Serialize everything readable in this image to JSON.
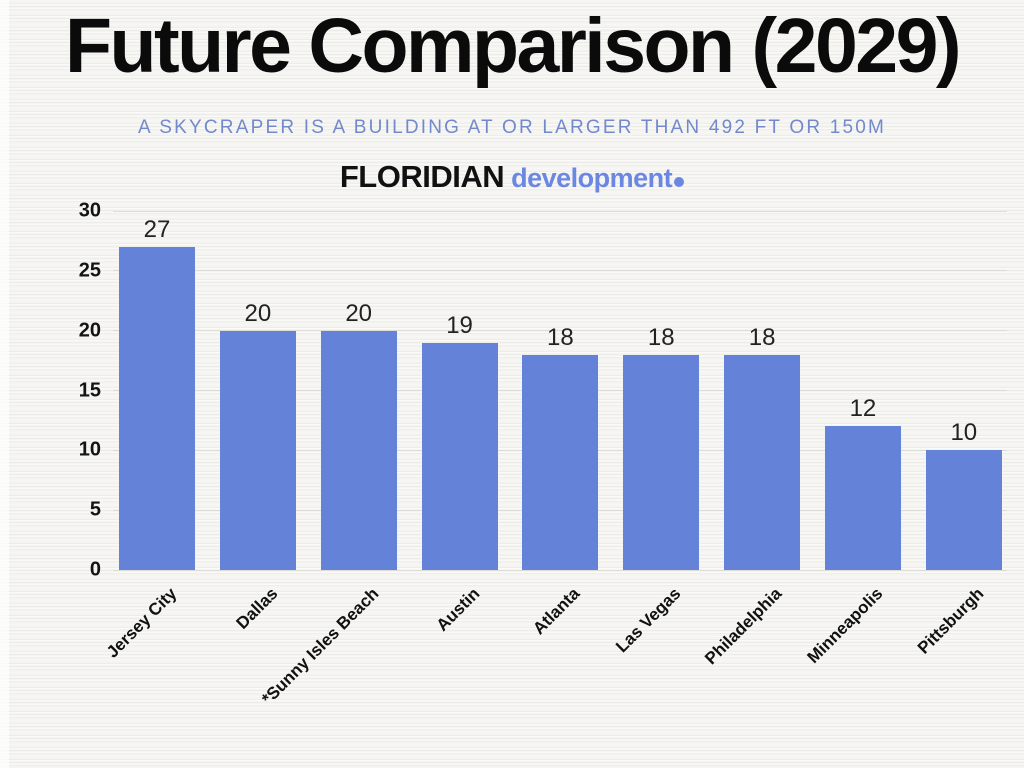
{
  "page": {
    "title": "Future Comparison (2029)",
    "subtitle": "A SKYCRAPER IS A BUILDING AT OR LARGER THAN 492 FT OR 150M",
    "brand": {
      "name": "FLORIDIAN",
      "suffix": "development"
    }
  },
  "colors": {
    "background": "#f5f4f1",
    "title_text": "#0b0b0b",
    "subtitle_text": "#7289cc",
    "brand_accent": "#6b87e2",
    "bar": "#6482d8",
    "gridline": "#dddcd7",
    "axis_text": "#141414",
    "value_label_text": "#222222"
  },
  "chart_data": {
    "type": "bar",
    "categories": [
      "Jersey City",
      "Dallas",
      "*Sunny Isles Beach",
      "Austin",
      "Atlanta",
      "Las Vegas",
      "Philadelphia",
      "Minneapolis",
      "Pittsburgh"
    ],
    "values": [
      27,
      20,
      20,
      19,
      18,
      18,
      18,
      12,
      10
    ],
    "title": "Future Comparison (2029)",
    "xlabel": "",
    "ylabel": "",
    "ylim": [
      0,
      30
    ],
    "yticks": [
      0,
      5,
      10,
      15,
      20,
      25,
      30
    ],
    "grid": true,
    "legend": false,
    "data_labels": true,
    "bar_color": "#6482d8",
    "x_label_rotation_deg": -45
  }
}
